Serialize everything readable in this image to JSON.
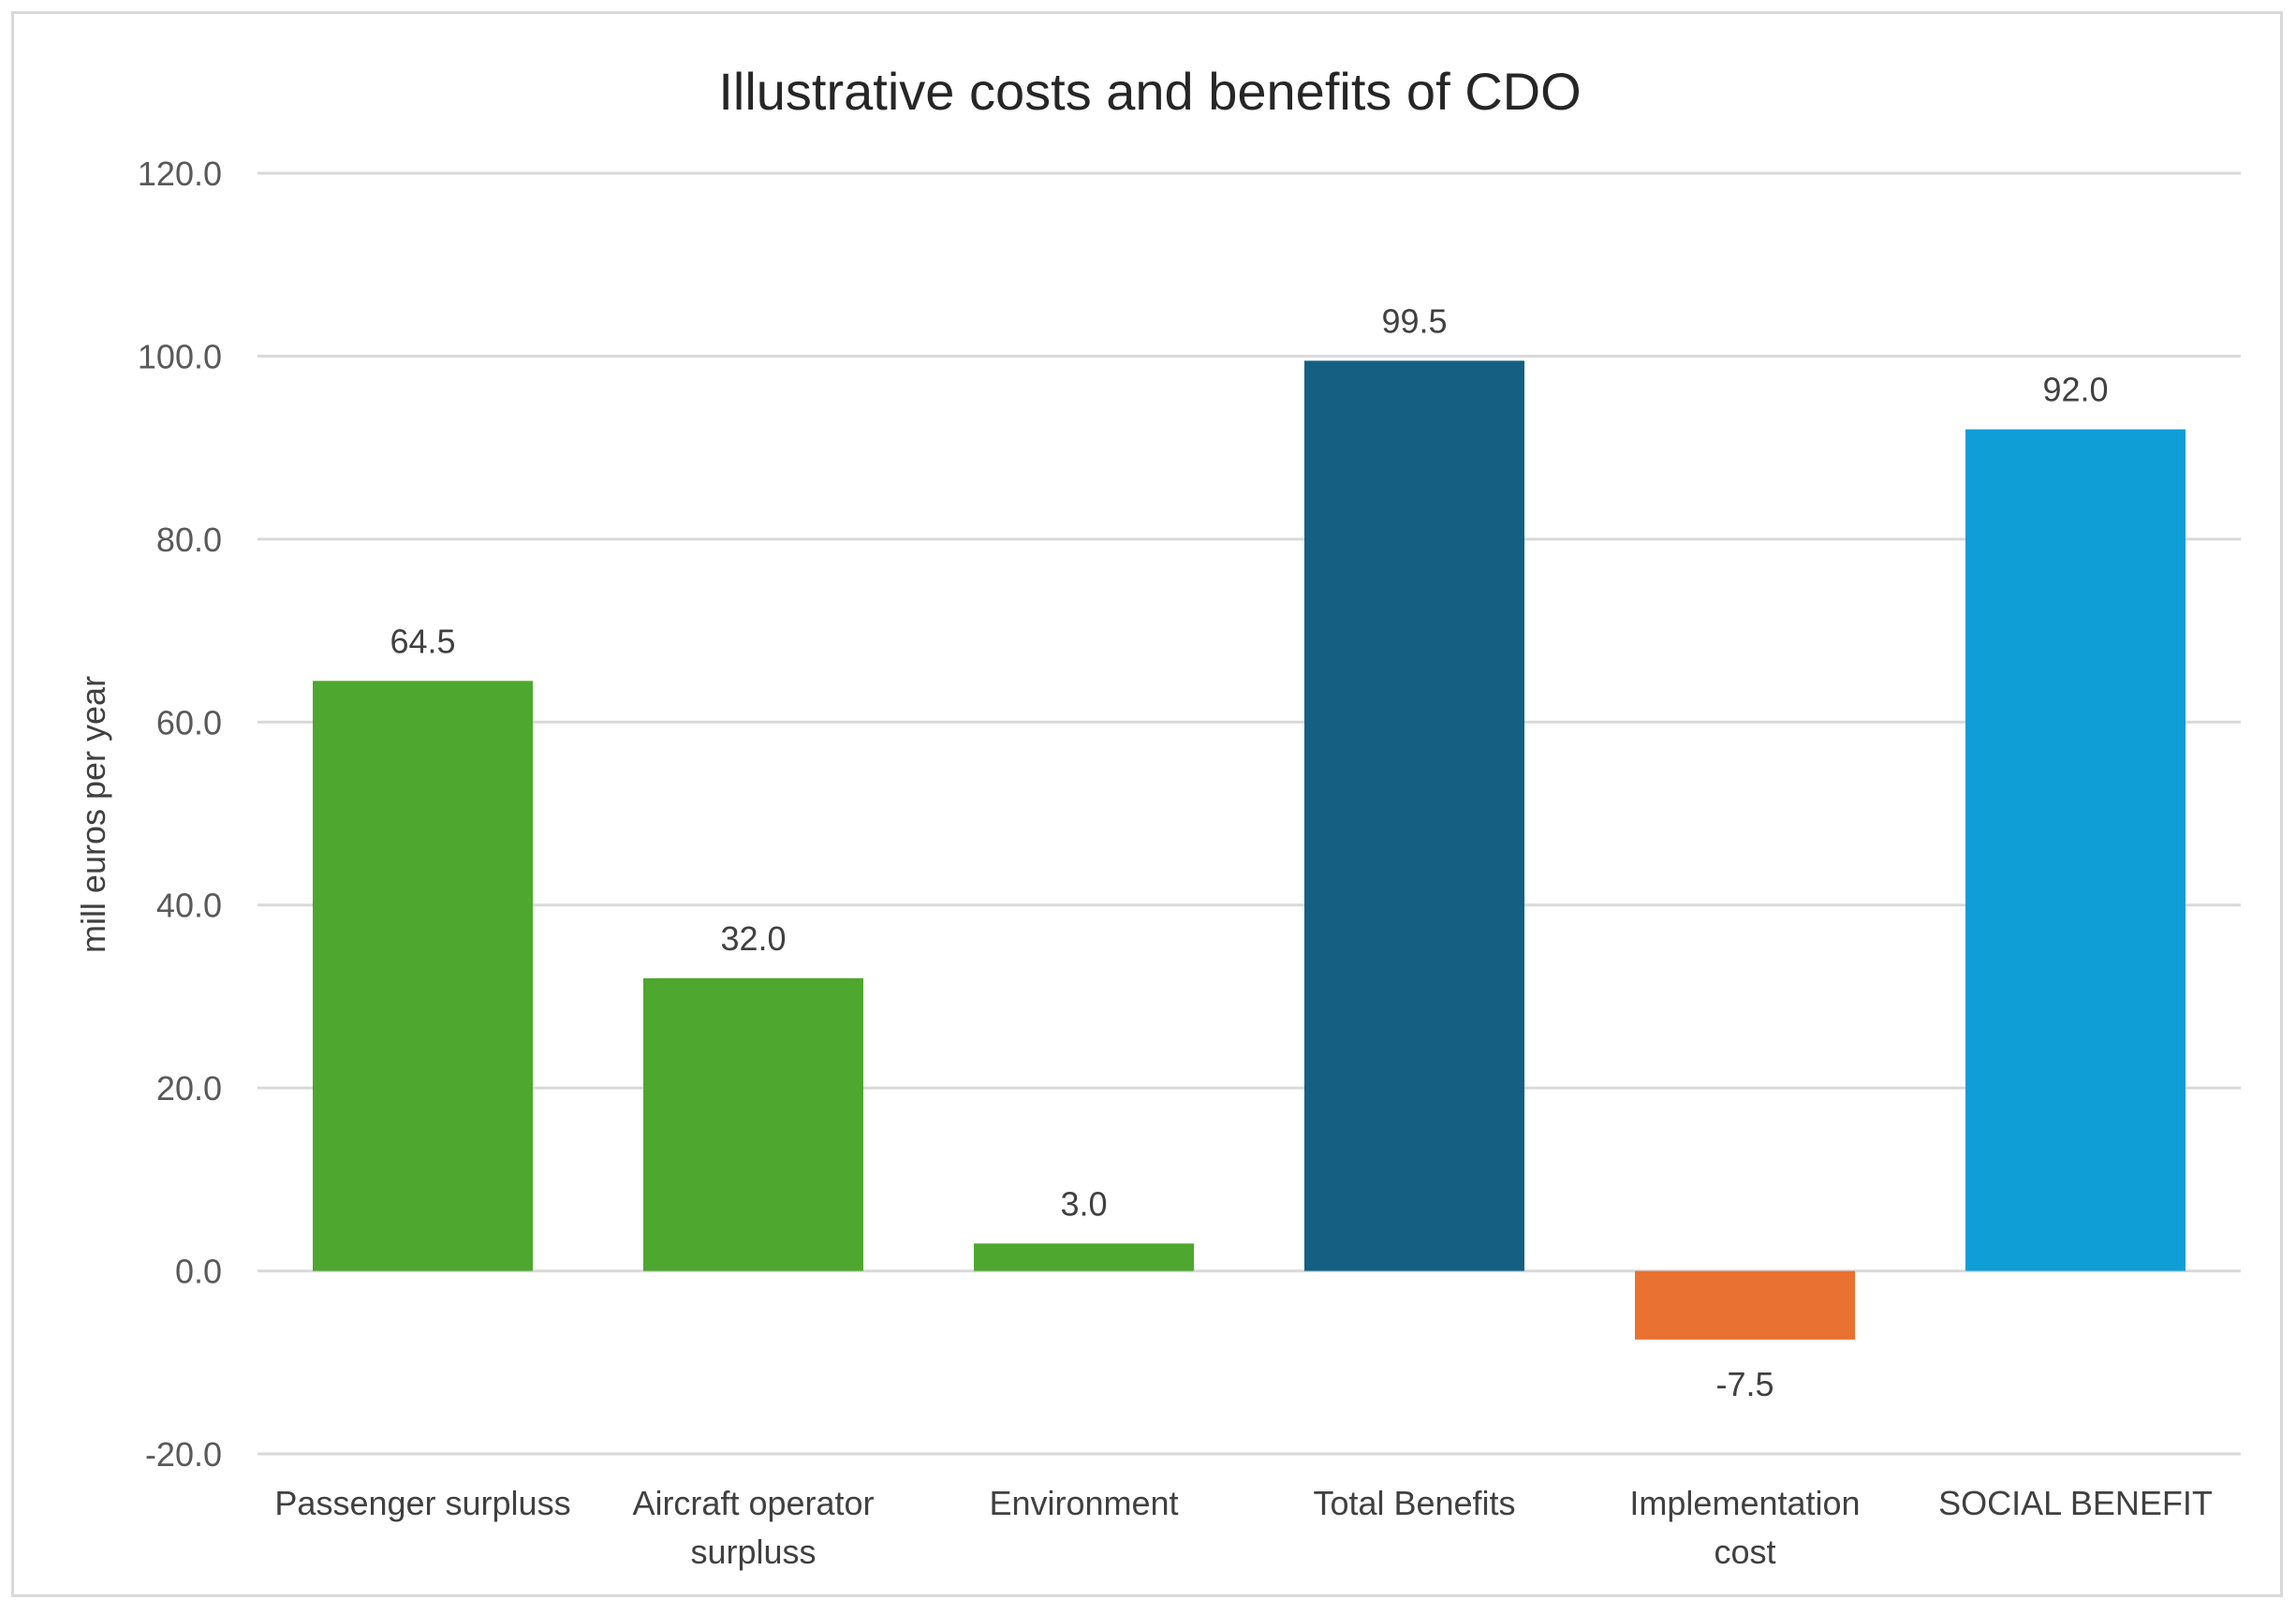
{
  "chart_data": {
    "type": "bar",
    "title": "Illustrative costs and benefits of CDO",
    "xlabel": "",
    "ylabel": "mill euros per year",
    "ylim": [
      -20,
      120
    ],
    "yticks": [
      -20,
      0,
      20,
      40,
      60,
      80,
      100,
      120
    ],
    "ytick_labels": [
      "-20.0",
      "0.0",
      "20.0",
      "40.0",
      "60.0",
      "80.0",
      "100.0",
      "120.0"
    ],
    "grid": true,
    "legend": "none",
    "categories": [
      [
        "Passenger surpluss"
      ],
      [
        "Aircraft operator",
        "surpluss"
      ],
      [
        "Environment"
      ],
      [
        "Total Benefits"
      ],
      [
        "Implementation",
        "cost"
      ],
      [
        "SOCIAL BENEFIT"
      ]
    ],
    "values": [
      64.5,
      32.0,
      3.0,
      99.5,
      -7.5,
      92.0
    ],
    "value_labels": [
      "64.5",
      "32.0",
      "3.0",
      "99.5",
      "-7.5",
      "92.0"
    ],
    "colors": [
      "#4ea72e",
      "#4ea72e",
      "#4ea72e",
      "#156082",
      "#e97132",
      "#0f9ed5"
    ]
  }
}
